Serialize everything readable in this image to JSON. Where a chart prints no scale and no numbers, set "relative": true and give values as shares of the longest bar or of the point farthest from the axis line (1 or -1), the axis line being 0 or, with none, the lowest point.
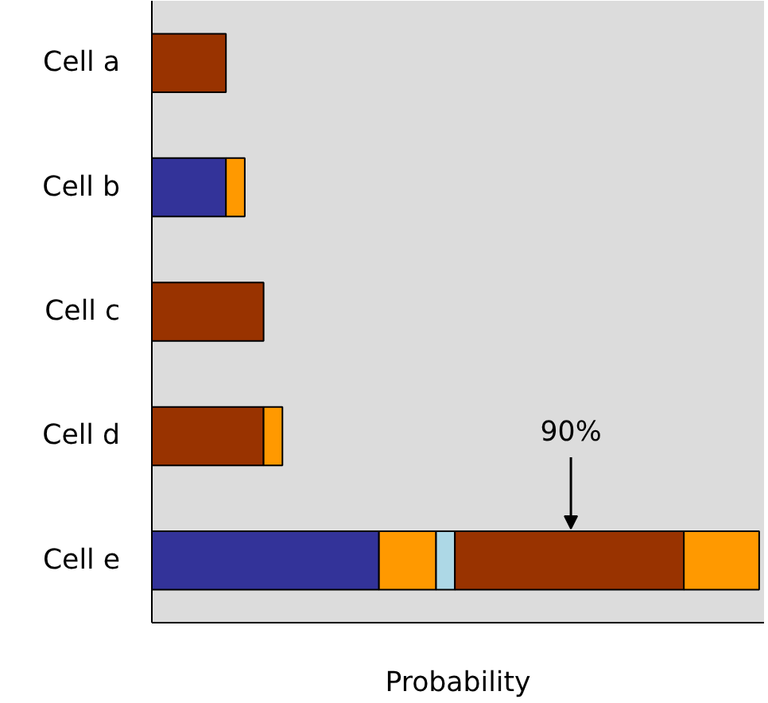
{
  "chart_data": {
    "type": "bar",
    "orientation": "horizontal",
    "stacked": true,
    "relative": true,
    "xlabel": "Probability",
    "categories": [
      "Cell a",
      "Cell b",
      "Cell c",
      "Cell d",
      "Cell e"
    ],
    "series": [
      {
        "colors": [
          "#993300",
          "#333399",
          "#993300",
          "#993300",
          "#333399"
        ],
        "values": [
          0.122,
          0.122,
          0.184,
          0.184,
          0.374
        ]
      },
      {
        "color": "#ff9900",
        "values": [
          null,
          0.031,
          null,
          0.031,
          0.094
        ]
      },
      {
        "color": "#add8e6",
        "values": [
          null,
          null,
          null,
          null,
          0.031
        ]
      },
      {
        "color": "#993300",
        "values": [
          null,
          null,
          null,
          null,
          0.377
        ]
      },
      {
        "color": "#ff9900",
        "values": [
          null,
          null,
          null,
          null,
          0.124
        ]
      }
    ],
    "annotations": [
      "90%"
    ],
    "grid": false
  }
}
